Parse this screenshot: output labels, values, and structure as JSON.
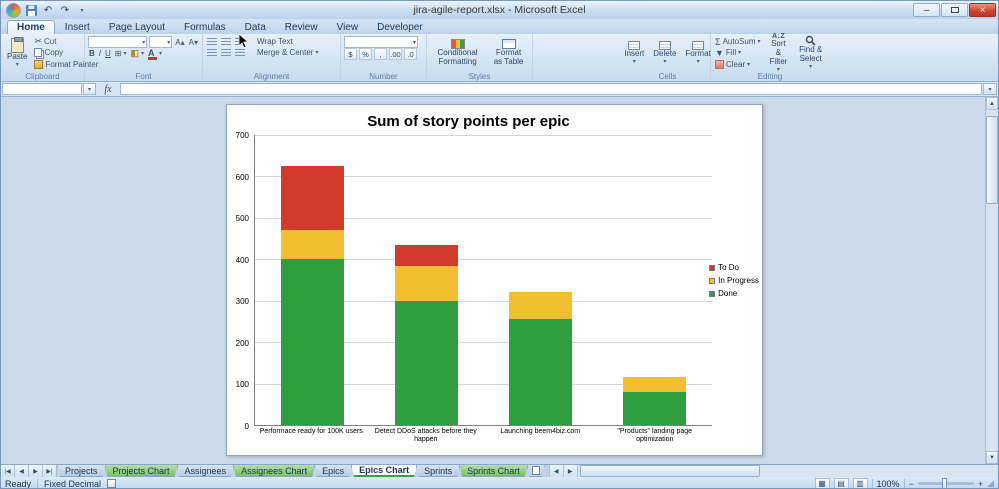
{
  "window": {
    "title": "jira-agile-report.xlsx - Microsoft Excel",
    "controls": {
      "minimize": "–",
      "close": "×"
    }
  },
  "icons": {
    "dropdown": "▾",
    "undo": "↶",
    "redo": "↷",
    "scissors": "✂",
    "sigma": "Σ",
    "grow_font": "A▴",
    "shrink_font": "A▾",
    "border_grid": "⊞",
    "left_arrow": "◀",
    "right_arrow": "▶",
    "up_arrow": "▲",
    "down_arrow": "▼",
    "view_normal": "▦",
    "view_layout": "▤",
    "view_break": "▥",
    "resize_grip": "◢",
    "sort_az": "A↓Z",
    "expand_formula": "▾"
  },
  "ribbon": {
    "tabs": [
      {
        "label": "Home",
        "active": true
      },
      {
        "label": "Insert"
      },
      {
        "label": "Page Layout"
      },
      {
        "label": "Formulas"
      },
      {
        "label": "Data"
      },
      {
        "label": "Review"
      },
      {
        "label": "View"
      },
      {
        "label": "Developer"
      }
    ],
    "clipboard": {
      "label": "Clipboard",
      "paste": "Paste",
      "cut": "Cut",
      "copy": "Copy",
      "format_painter": "Format Painter"
    },
    "font": {
      "label": "Font",
      "bold": "B",
      "italic": "I",
      "underline": "U"
    },
    "alignment": {
      "label": "Alignment",
      "wrap_text": "Wrap Text",
      "merge_center": "Merge & Center"
    },
    "number": {
      "label": "Number",
      "currency": "$",
      "percent": "%",
      "comma": ",",
      "inc_decimal": ".00",
      "dec_decimal": ".0"
    },
    "styles": {
      "label": "Styles",
      "conditional": "Conditional Formatting",
      "format_table": "Format as Table"
    },
    "cells": {
      "label": "Cells",
      "insert": "Insert",
      "delete": "Delete",
      "format": "Format"
    },
    "editing": {
      "label": "Editing",
      "autosum": "AutoSum",
      "fill": "Fill",
      "clear": "Clear",
      "sort": "Sort & Filter",
      "find": "Find & Select"
    }
  },
  "formula_bar": {
    "name_box": "",
    "fx": "fx",
    "value": ""
  },
  "chart_data": {
    "type": "bar",
    "stacked": true,
    "title": "Sum of story points per epic",
    "categories": [
      "Performace ready for 100K users",
      "Detect DDoS attacks before they happen",
      "Launching beem4biz.com",
      "\"Products\" landing page  optimization"
    ],
    "series": [
      {
        "name": "Done",
        "color": "#2f9e3e",
        "values": [
          400,
          300,
          255,
          80
        ]
      },
      {
        "name": "In Progress",
        "color": "#f1bf31",
        "values": [
          70,
          85,
          65,
          35
        ]
      },
      {
        "name": "To Do",
        "color": "#d03b2c",
        "values": [
          155,
          50,
          0,
          0
        ]
      }
    ],
    "legend_order": [
      "To Do",
      "In Progress",
      "Done"
    ],
    "legend_position": "right",
    "grid": true,
    "ylim": [
      0,
      700
    ],
    "ytick_step": 100,
    "xlabel": "",
    "ylabel": ""
  },
  "sheets": {
    "nav": [
      "|◀",
      "◀",
      "▶",
      "▶|"
    ],
    "tabs": [
      {
        "label": "Projects",
        "kind": "normal"
      },
      {
        "label": "Projects Chart",
        "kind": "chart"
      },
      {
        "label": "Assignees",
        "kind": "normal"
      },
      {
        "label": "Assignees Chart",
        "kind": "chart"
      },
      {
        "label": "Epics",
        "kind": "normal"
      },
      {
        "label": "Epics Chart",
        "kind": "chart",
        "active": true
      },
      {
        "label": "Sprints",
        "kind": "normal"
      },
      {
        "label": "Sprints Chart",
        "kind": "chart"
      }
    ]
  },
  "status_bar": {
    "mode": "Ready",
    "indicator": "Fixed Decimal",
    "zoom": "100%",
    "zoom_out": "−",
    "zoom_in": "+"
  }
}
